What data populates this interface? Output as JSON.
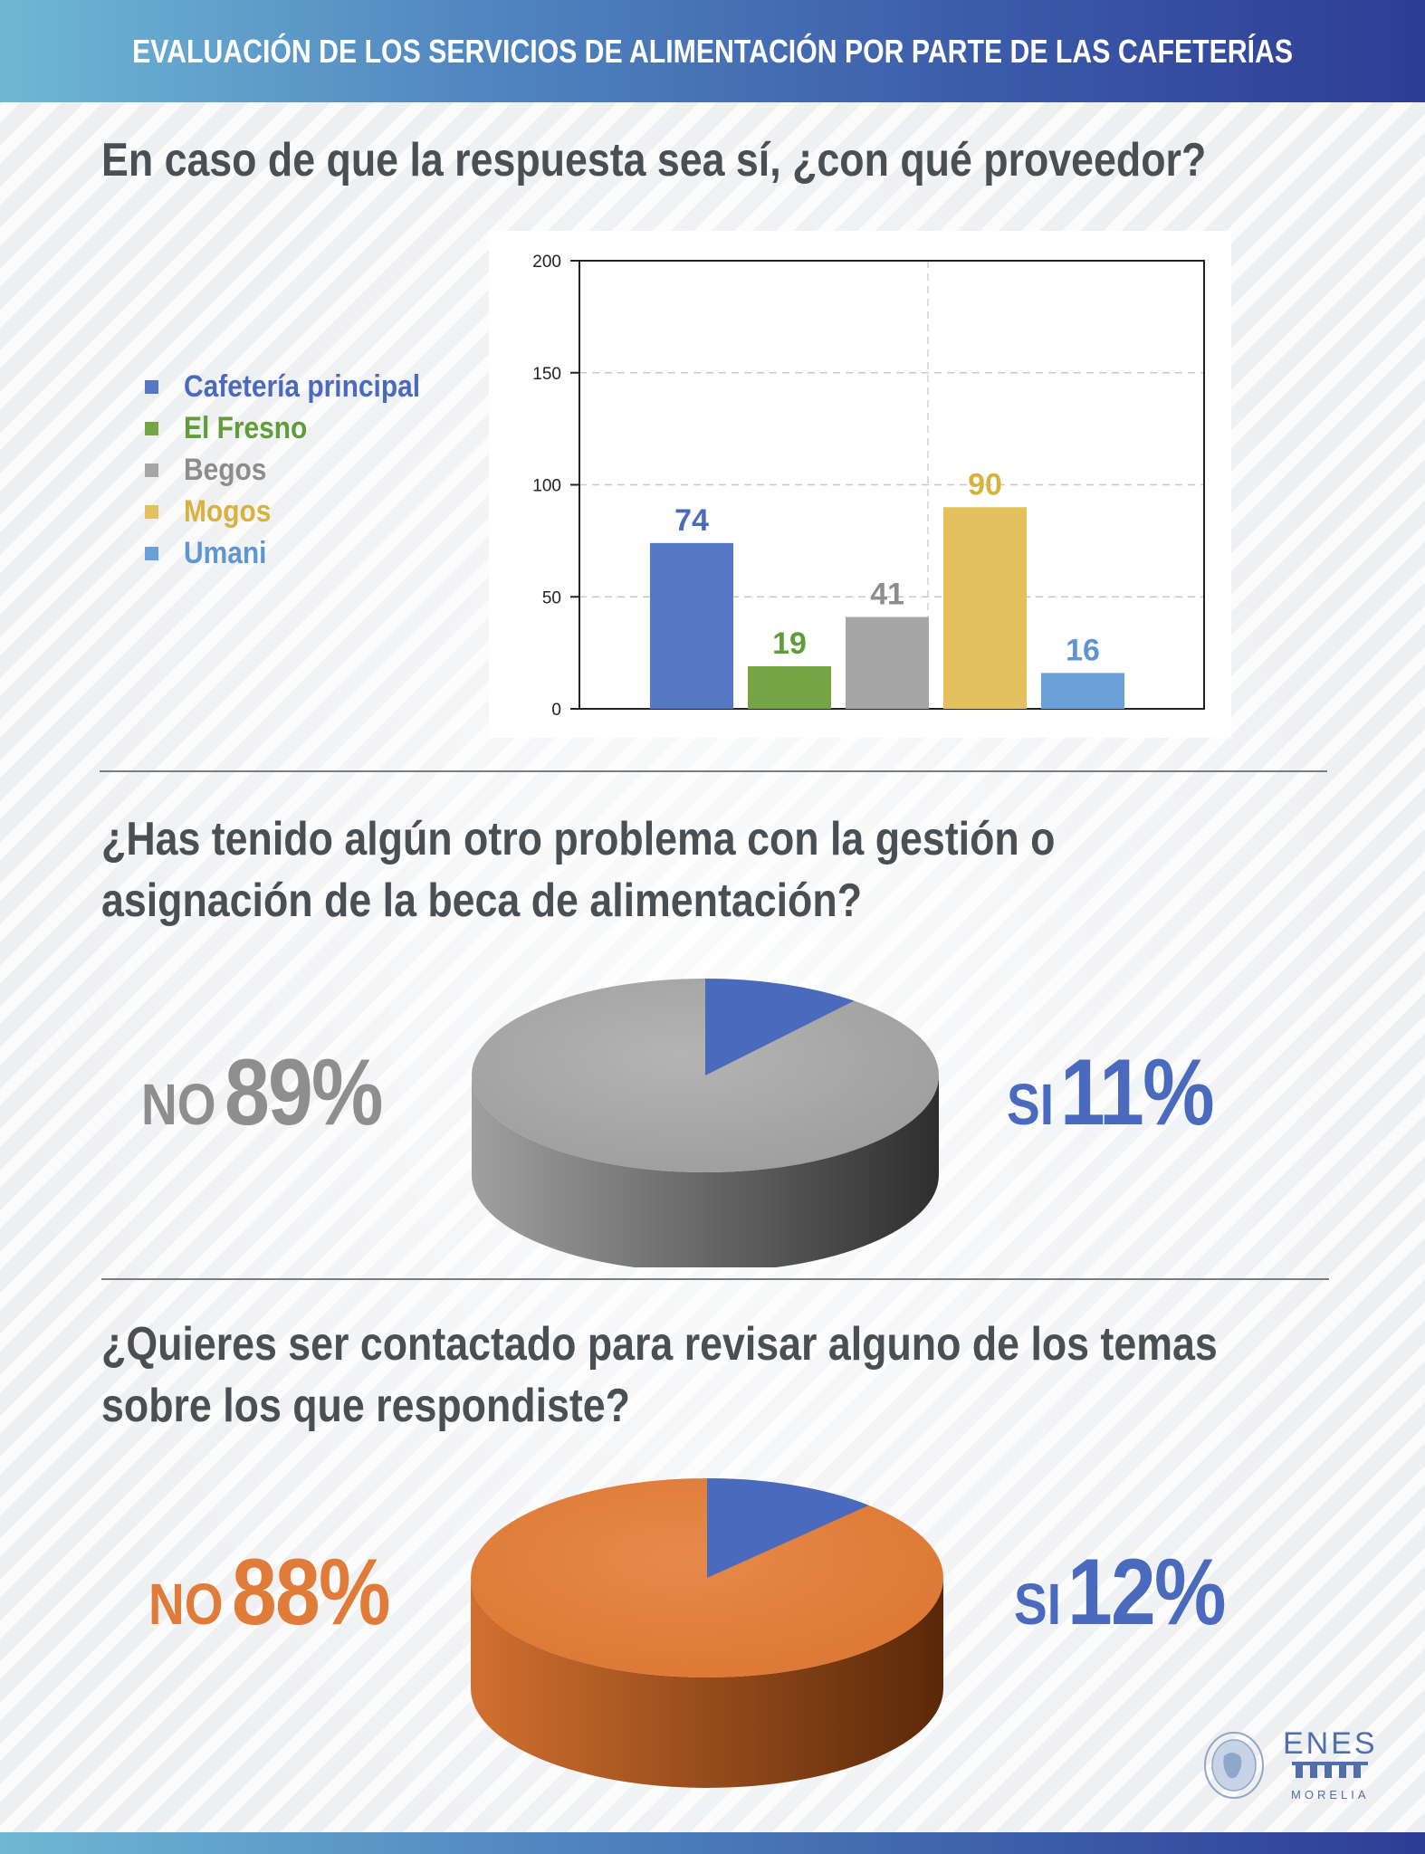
{
  "header": {
    "title": "EVALUACIÓN DE LOS SERVICIOS DE ALIMENTACIÓN POR PARTE DE LAS CAFETERÍAS"
  },
  "questions": {
    "q1": "En caso de que la respuesta sea sí, ¿con qué proveedor?",
    "q2_line1": "¿Has tenido algún otro problema con la gestión o",
    "q2_line2": "asignación de la beca de alimentación?",
    "q3_line1": "¿Quieres ser contactado para revisar alguno de los temas",
    "q3_line2": "sobre los que respondiste?"
  },
  "chart_data": [
    {
      "type": "bar",
      "categories": [
        "Cafetería principal",
        "El Fresno",
        "Begos",
        "Mogos",
        "Umani"
      ],
      "values": [
        74,
        19,
        41,
        90,
        16
      ],
      "colors": [
        "#5577c4",
        "#75a545",
        "#a6a6a6",
        "#e2c15e",
        "#6a9fd8"
      ],
      "label_colors": [
        "#4a6bbd",
        "#5f9d3b",
        "#8d8d8d",
        "#d7b23e",
        "#5f95d3"
      ],
      "ylim": [
        0,
        200
      ],
      "yticks": [
        0,
        50,
        100,
        150,
        200
      ],
      "grid": true,
      "legend_position": "left"
    },
    {
      "type": "pie",
      "labels": [
        "NO",
        "SI"
      ],
      "values": [
        89,
        11
      ],
      "value_labels": [
        "89%",
        "11%"
      ],
      "colors": [
        "#a7a7a7",
        "#4a6bbd"
      ]
    },
    {
      "type": "pie",
      "labels": [
        "NO",
        "SI"
      ],
      "values": [
        88,
        12
      ],
      "value_labels": [
        "88%",
        "12%"
      ],
      "colors": [
        "#e07b39",
        "#4a6bbd"
      ]
    }
  ],
  "logo": {
    "name": "ENES",
    "subtitle": "MORELIA"
  }
}
